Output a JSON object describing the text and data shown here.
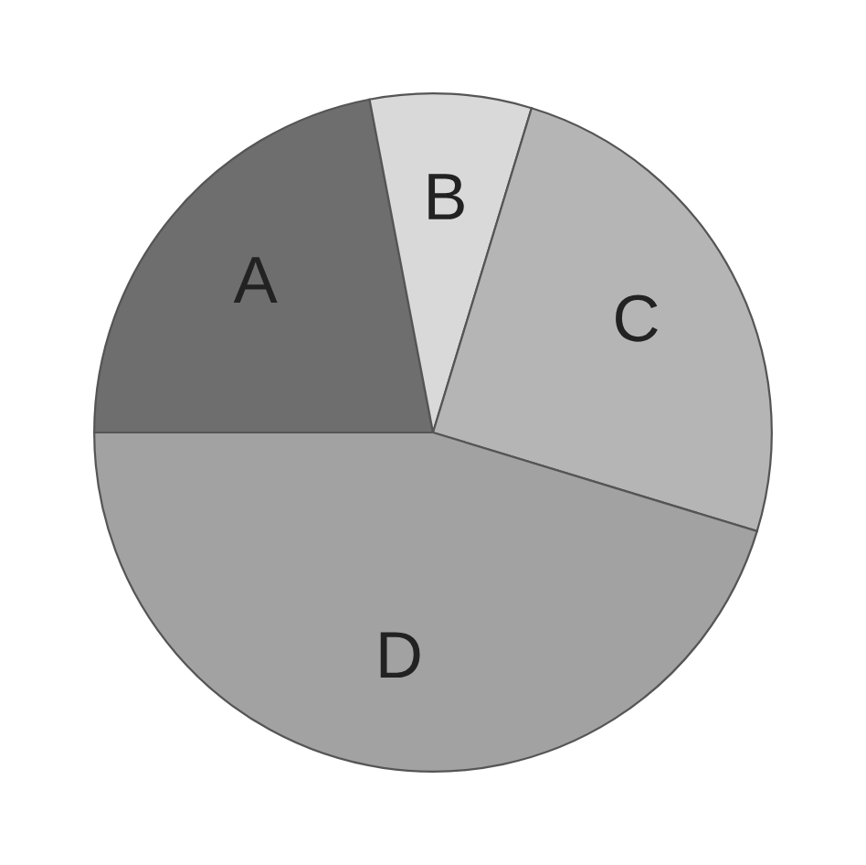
{
  "chart_data": {
    "type": "pie",
    "categories": [
      "A",
      "B",
      "C",
      "D"
    ],
    "values": [
      22,
      7.7,
      25,
      45.3
    ],
    "colors": [
      "#6e6e6e",
      "#d9d9d9",
      "#b5b5b5",
      "#a2a2a2"
    ]
  }
}
